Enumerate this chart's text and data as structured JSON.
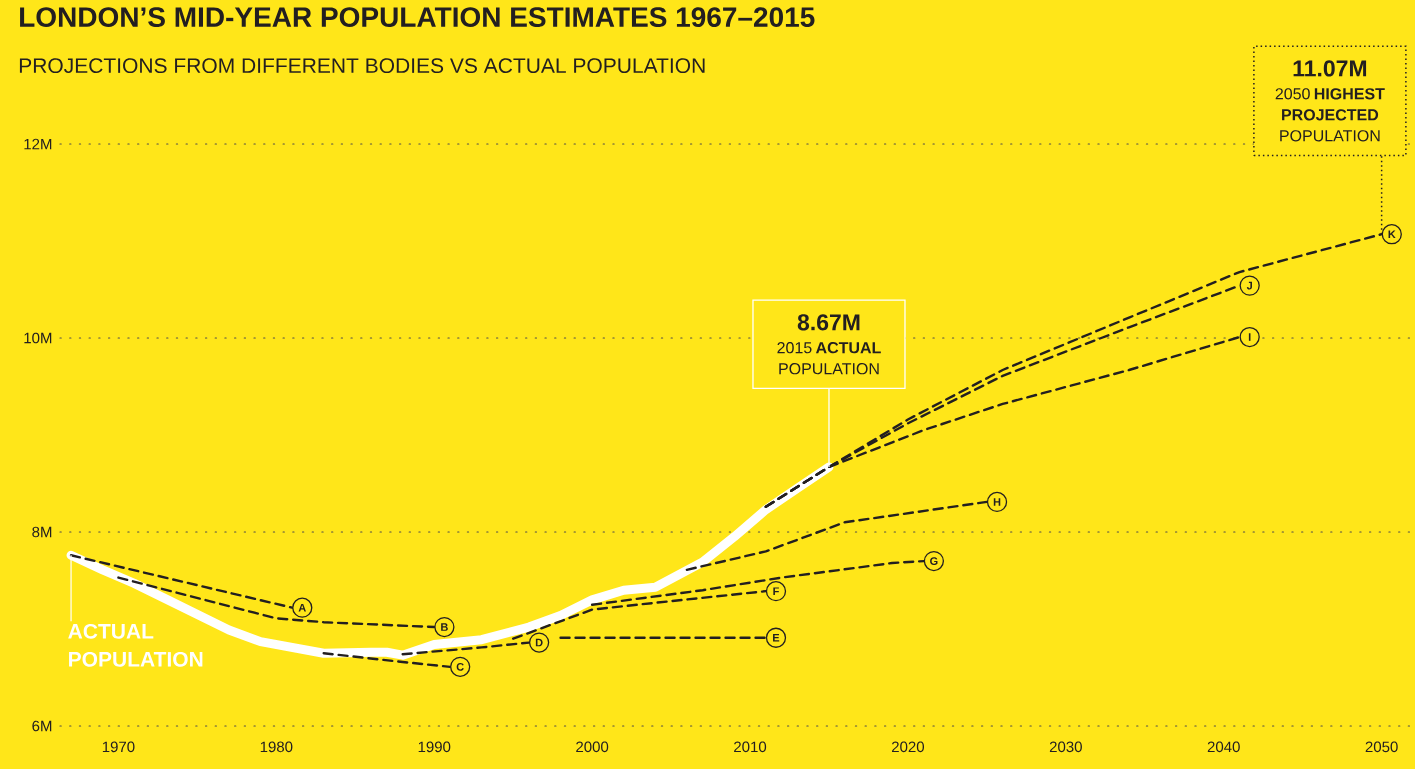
{
  "chart_data": {
    "type": "line",
    "title": "LONDON’S MID-YEAR POPULATION ESTIMATES 1967–2015",
    "subtitle": "PROJECTIONS FROM DIFFERENT BODIES VS ACTUAL POPULATION",
    "xlim": [
      1966.3,
      2051.8
    ],
    "ylim": [
      6,
      12
    ],
    "xticks": [
      1970,
      1980,
      1990,
      2000,
      2010,
      2020,
      2030,
      2040,
      2050
    ],
    "yticks": [
      {
        "value": 6,
        "label": "6M"
      },
      {
        "value": 8,
        "label": "8M"
      },
      {
        "value": 10,
        "label": "10M"
      },
      {
        "value": 12,
        "label": "12M"
      }
    ],
    "grid": "y",
    "series": [
      {
        "name": "ACTUAL POPULATION",
        "color": "#ffffff",
        "line_style": "solid",
        "x": [
          1967,
          1969,
          1970,
          1971,
          1974,
          1977,
          1979,
          1983,
          1986,
          1987,
          1988,
          1990,
          1993,
          1996,
          1998,
          2000,
          2002,
          2004,
          2007,
          2009,
          2011,
          2013,
          2015
        ],
        "values": [
          7.76,
          7.61,
          7.54,
          7.47,
          7.23,
          6.99,
          6.87,
          6.75,
          6.76,
          6.76,
          6.73,
          6.84,
          6.89,
          7.02,
          7.14,
          7.3,
          7.4,
          7.43,
          7.69,
          7.95,
          8.23,
          8.45,
          8.67
        ]
      },
      {
        "name": "A",
        "color": "#231f20",
        "line_style": "dashed",
        "x": [
          1967,
          1981
        ],
        "values": [
          7.76,
          7.22
        ]
      },
      {
        "name": "B",
        "color": "#231f20",
        "line_style": "dashed",
        "x": [
          1970,
          1980,
          1983,
          1990
        ],
        "values": [
          7.53,
          7.11,
          7.07,
          7.02
        ]
      },
      {
        "name": "C",
        "color": "#231f20",
        "line_style": "dashed",
        "x": [
          1983,
          1988,
          1991
        ],
        "values": [
          6.75,
          6.66,
          6.61
        ]
      },
      {
        "name": "D",
        "color": "#231f20",
        "line_style": "dashed",
        "x": [
          1988,
          1993,
          1996
        ],
        "values": [
          6.74,
          6.81,
          6.86
        ]
      },
      {
        "name": "E",
        "color": "#231f20",
        "line_style": "dashed",
        "x": [
          1998,
          2011
        ],
        "values": [
          6.91,
          6.91
        ]
      },
      {
        "name": "F",
        "color": "#231f20",
        "line_style": "dashed",
        "x": [
          1995,
          2000,
          2004,
          2011
        ],
        "values": [
          6.9,
          7.2,
          7.27,
          7.39
        ]
      },
      {
        "name": "G",
        "color": "#231f20",
        "line_style": "dashed",
        "x": [
          2000,
          2007,
          2012,
          2019,
          2021
        ],
        "values": [
          7.25,
          7.4,
          7.53,
          7.68,
          7.7
        ]
      },
      {
        "name": "H",
        "color": "#231f20",
        "line_style": "dashed",
        "x": [
          2006,
          2011,
          2016,
          2025
        ],
        "values": [
          7.61,
          7.8,
          8.1,
          8.31
        ]
      },
      {
        "name": "I",
        "color": "#231f20",
        "line_style": "dashed",
        "x": [
          2011,
          2015,
          2021,
          2026,
          2034,
          2041
        ],
        "values": [
          8.26,
          8.67,
          9.05,
          9.32,
          9.67,
          10.01
        ]
      },
      {
        "name": "J",
        "color": "#231f20",
        "line_style": "dashed",
        "x": [
          2011,
          2015,
          2020,
          2026,
          2034,
          2041
        ],
        "values": [
          8.26,
          8.67,
          9.12,
          9.61,
          10.11,
          10.54
        ]
      },
      {
        "name": "K",
        "color": "#231f20",
        "line_style": "dashed",
        "x": [
          2011,
          2015,
          2020,
          2026,
          2034,
          2041,
          2050
        ],
        "values": [
          8.26,
          8.67,
          9.16,
          9.67,
          10.21,
          10.68,
          11.07
        ]
      }
    ],
    "annotations": [
      "8.67M",
      {
        "text": "2015 **ACTUAL** POPULATION",
        "x": 2015,
        "y": 8.67
      },
      "11.07M",
      {
        "text": "2050 **HIGHEST PROJECTED** POPULATION",
        "x": 2050,
        "y": 11.07
      }
    ]
  }
}
